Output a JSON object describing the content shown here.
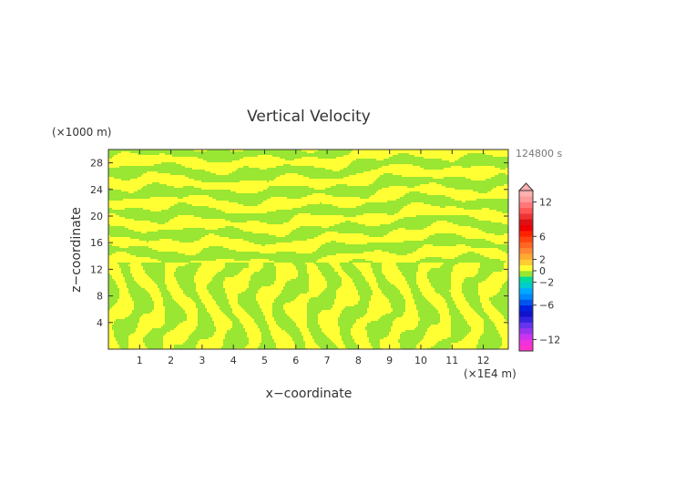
{
  "chart_data": {
    "type": "heatmap",
    "title": "Vertical Velocity",
    "xlabel": "x−coordinate",
    "ylabel": "z−coordinate",
    "x_unit": "(×1E4 m)",
    "y_unit": "(×1000 m)",
    "time_label": "124800 s",
    "xlim": [
      0,
      12.8
    ],
    "ylim": [
      0,
      30
    ],
    "x_ticks": [
      "1",
      "2",
      "3",
      "4",
      "5",
      "6",
      "7",
      "8",
      "9",
      "10",
      "11",
      "12"
    ],
    "y_ticks": [
      "4",
      "8",
      "12",
      "16",
      "20",
      "24",
      "28"
    ],
    "grid": false,
    "colorbar": {
      "placement": "right",
      "labels": [
        "12",
        "6",
        "2",
        "0",
        "−2",
        "−6",
        "−12"
      ],
      "label_values": [
        12,
        6,
        2,
        0,
        -2,
        -6,
        -12
      ],
      "levels": [
        {
          "lo": -14,
          "hi": -13,
          "color": "#ff33cc"
        },
        {
          "lo": -13,
          "hi": -12,
          "color": "#ee33dd"
        },
        {
          "lo": -12,
          "hi": -11,
          "color": "#cc33ee"
        },
        {
          "lo": -11,
          "hi": -10,
          "color": "#9933ee"
        },
        {
          "lo": -10,
          "hi": -9,
          "color": "#6633ee"
        },
        {
          "lo": -9,
          "hi": -8,
          "color": "#3322dd"
        },
        {
          "lo": -8,
          "hi": -7,
          "color": "#1111cc"
        },
        {
          "lo": -7,
          "hi": -6,
          "color": "#0022dd"
        },
        {
          "lo": -6,
          "hi": -5,
          "color": "#0055ee"
        },
        {
          "lo": -5,
          "hi": -4,
          "color": "#0088ff"
        },
        {
          "lo": -4,
          "hi": -3,
          "color": "#00aaff"
        },
        {
          "lo": -3,
          "hi": -2,
          "color": "#00cccc"
        },
        {
          "lo": -2,
          "hi": -1,
          "color": "#00dd99"
        },
        {
          "lo": -1,
          "hi": 0,
          "color": "#99e633"
        },
        {
          "lo": 0,
          "hi": 1,
          "color": "#ffff33"
        },
        {
          "lo": 1,
          "hi": 2,
          "color": "#ffcc33"
        },
        {
          "lo": 2,
          "hi": 3,
          "color": "#ffaa33"
        },
        {
          "lo": 3,
          "hi": 4,
          "color": "#ff8833"
        },
        {
          "lo": 4,
          "hi": 5,
          "color": "#ff6622"
        },
        {
          "lo": 5,
          "hi": 6,
          "color": "#ff4411"
        },
        {
          "lo": 6,
          "hi": 7,
          "color": "#ff2200"
        },
        {
          "lo": 7,
          "hi": 8,
          "color": "#ee0000"
        },
        {
          "lo": 8,
          "hi": 9,
          "color": "#dd1111"
        },
        {
          "lo": 9,
          "hi": 10,
          "color": "#ee3333"
        },
        {
          "lo": 10,
          "hi": 11,
          "color": "#ff5555"
        },
        {
          "lo": 11,
          "hi": 12,
          "color": "#ff7777"
        },
        {
          "lo": 12,
          "hi": 13,
          "color": "#ff9999"
        },
        {
          "lo": 13,
          "hi": 14,
          "color": "#ffb0b0"
        }
      ]
    },
    "field": {
      "values_present": [
        "0 to 1 (yellow)",
        "-1 to 0 (green)"
      ],
      "colors": {
        "positive": "#ffff33",
        "negative": "#99e633"
      }
    }
  }
}
